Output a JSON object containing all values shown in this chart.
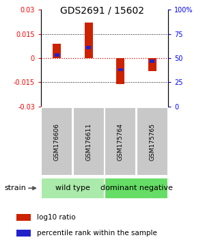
{
  "title": "GDS2691 / 15602",
  "samples": [
    "GSM176606",
    "GSM176611",
    "GSM175764",
    "GSM175765"
  ],
  "log10_ratio": [
    0.009,
    0.022,
    -0.016,
    -0.008
  ],
  "percentile_rank": [
    0.53,
    0.61,
    0.38,
    0.47
  ],
  "ylim": [
    -0.03,
    0.03
  ],
  "yticks_left": [
    -0.03,
    -0.015,
    0,
    0.015,
    0.03
  ],
  "yticks_right": [
    0,
    25,
    50,
    75,
    100
  ],
  "groups": [
    {
      "label": "wild type",
      "indices": [
        0,
        1
      ],
      "color": "#aaeaaa"
    },
    {
      "label": "dominant negative",
      "indices": [
        2,
        3
      ],
      "color": "#66dd66"
    }
  ],
  "bar_color_red": "#cc2200",
  "bar_color_blue": "#2222cc",
  "zero_line_color": "#cc0000",
  "title_fontsize": 10,
  "tick_fontsize": 7,
  "legend_fontsize": 7.5,
  "sample_label_fontsize": 6.5,
  "group_label_fontsize": 8,
  "strain_fontsize": 8,
  "bar_width": 0.25,
  "blue_bar_width": 0.15,
  "blue_bar_height": 0.002
}
